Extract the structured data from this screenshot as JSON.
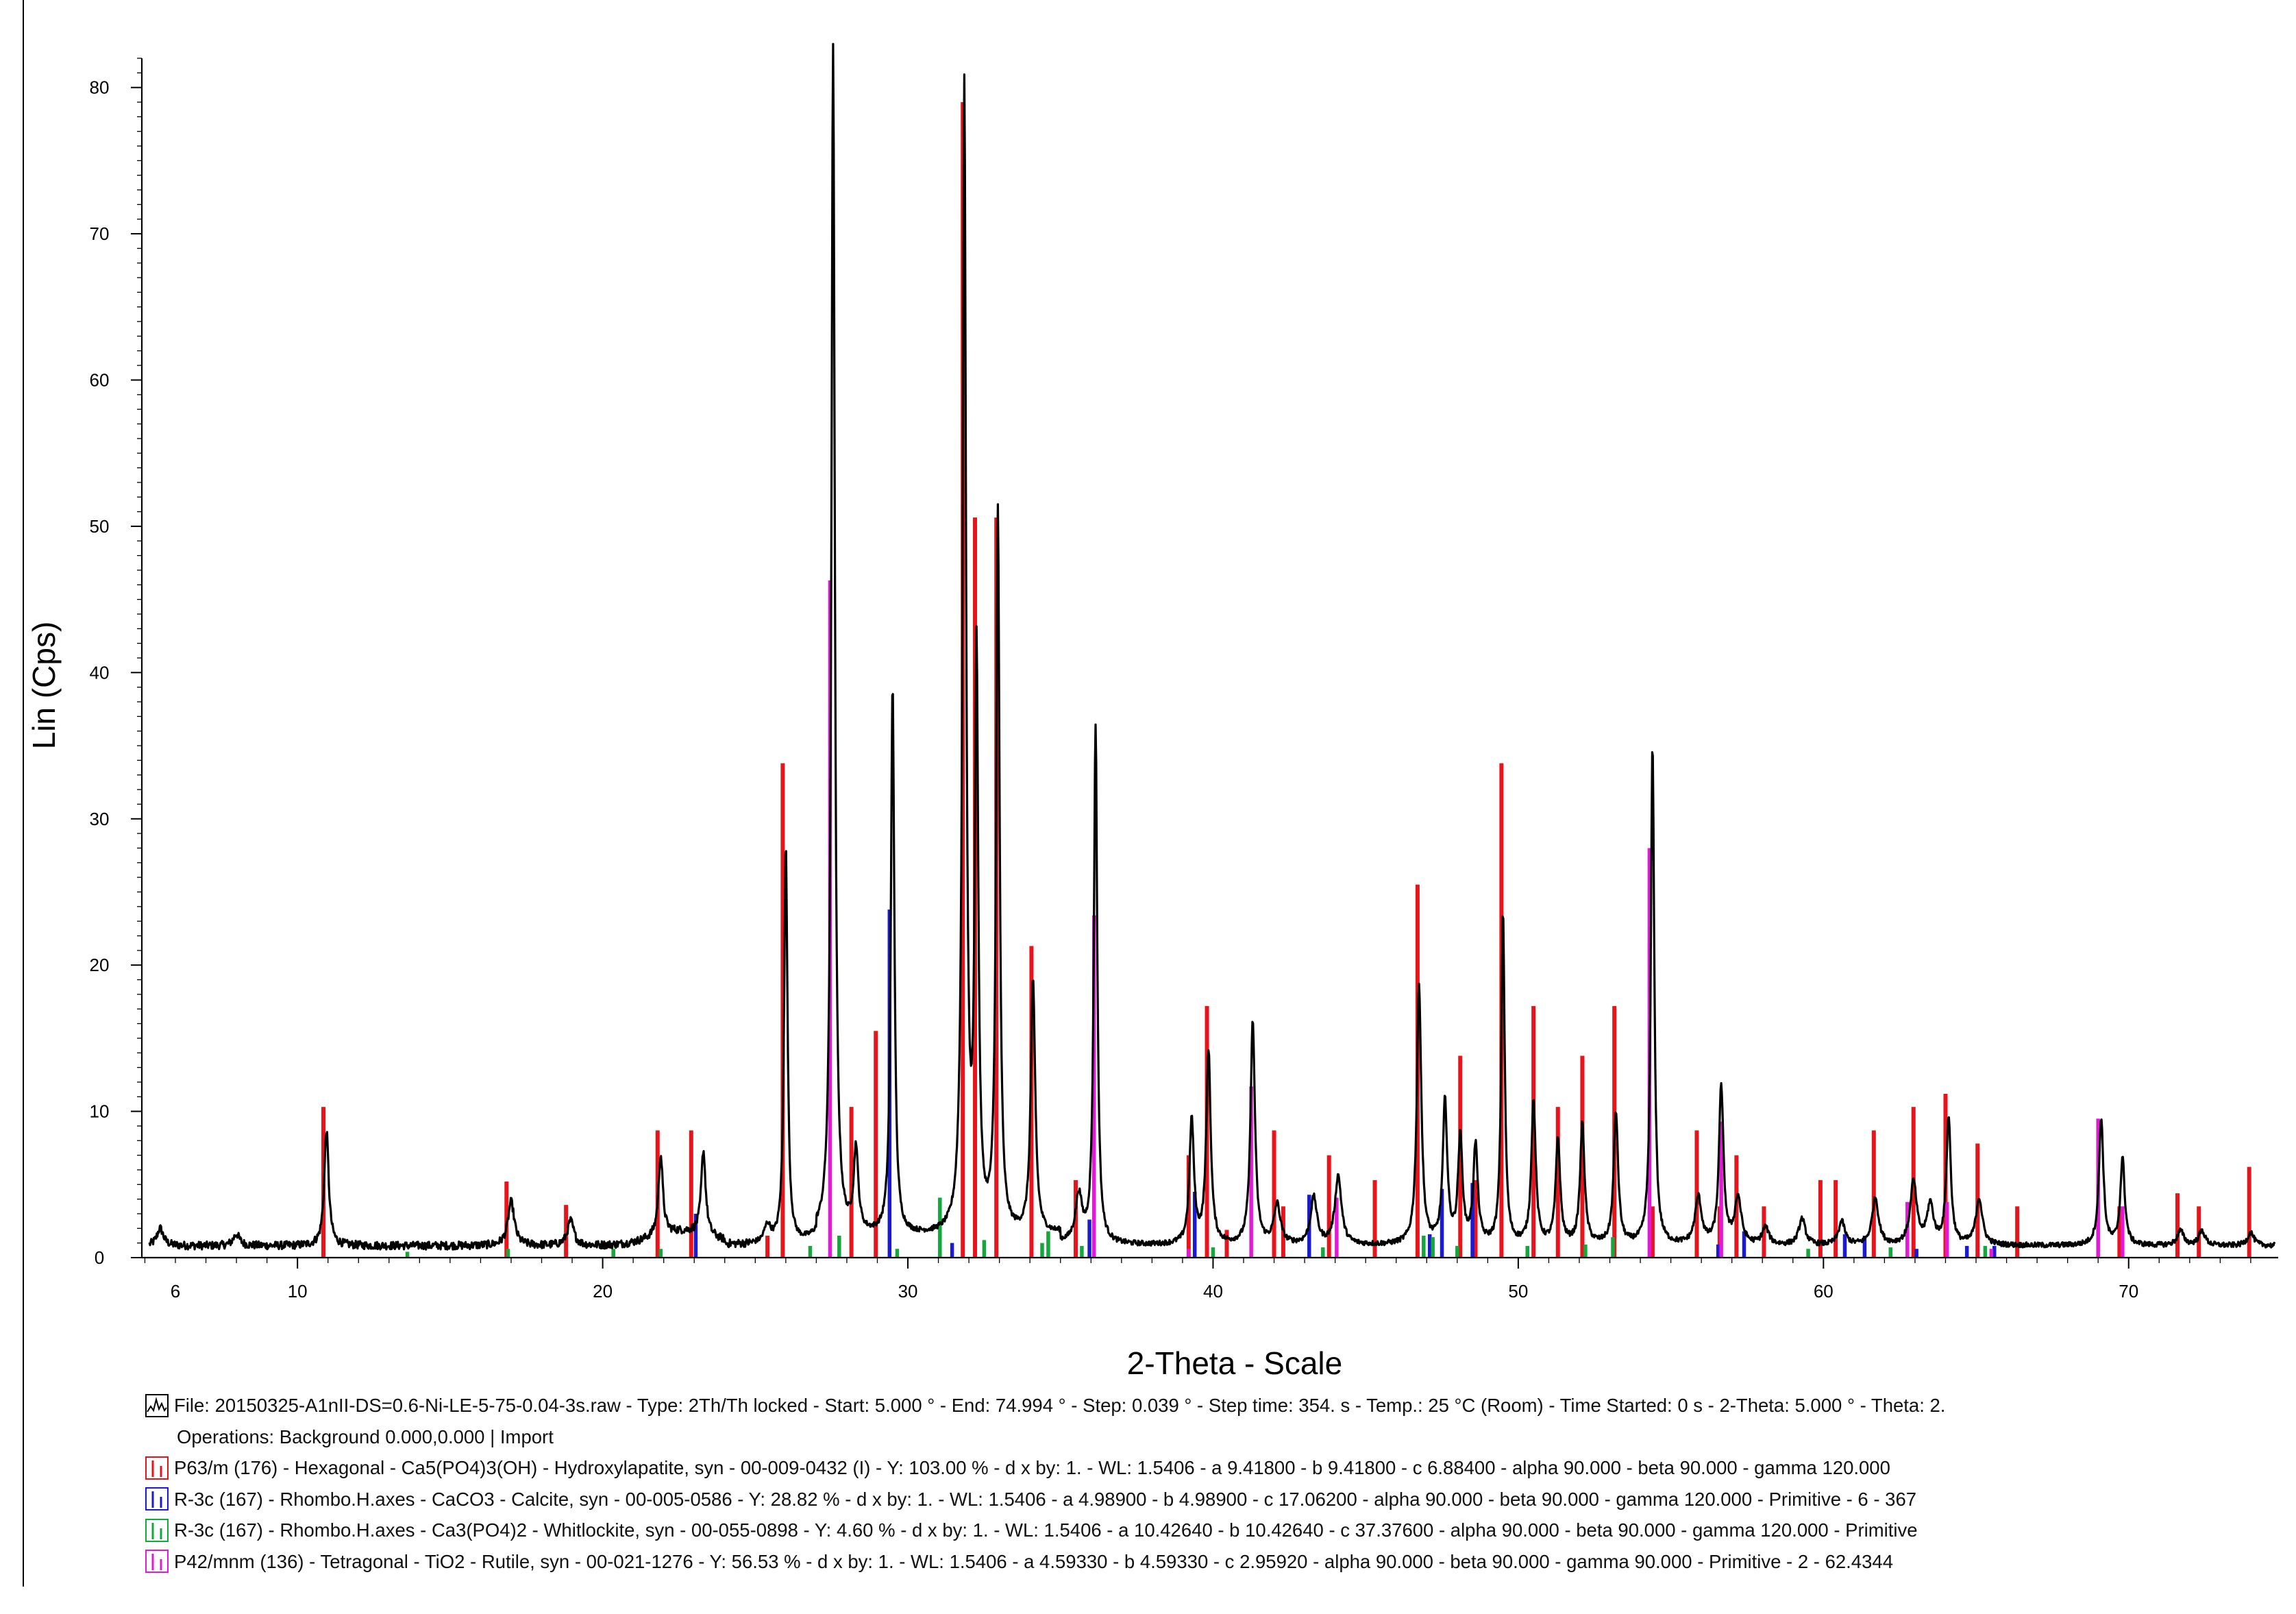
{
  "chart_data": {
    "type": "line",
    "title": "",
    "xlabel": "2-Theta - Scale",
    "ylabel": "Lin (Cps)",
    "xlim": [
      4.9,
      74.9
    ],
    "ylim": [
      0,
      82
    ],
    "grid": false,
    "x_ticks": [
      6,
      10,
      20,
      30,
      40,
      50,
      60,
      70
    ],
    "y_ticks": [
      0,
      10,
      20,
      30,
      40,
      50,
      60,
      70,
      80
    ],
    "measured_pattern": {
      "name": "File: 20150325-A1nII-DS=0.6-Ni-LE-5-75-0.04-3s.raw",
      "color": "#000000",
      "background_level": 0.8,
      "peaks": [
        {
          "x": 5.5,
          "y": 2.0
        },
        {
          "x": 8.0,
          "y": 1.6
        },
        {
          "x": 10.95,
          "y": 8.7
        },
        {
          "x": 17.0,
          "y": 3.8
        },
        {
          "x": 18.95,
          "y": 2.5
        },
        {
          "x": 21.9,
          "y": 6.3
        },
        {
          "x": 23.3,
          "y": 6.6
        },
        {
          "x": 25.4,
          "y": 2.0
        },
        {
          "x": 26.0,
          "y": 28.0
        },
        {
          "x": 27.55,
          "y": 82.0
        },
        {
          "x": 28.3,
          "y": 6.5
        },
        {
          "x": 29.5,
          "y": 38.5
        },
        {
          "x": 31.85,
          "y": 79.0
        },
        {
          "x": 32.25,
          "y": 40.0
        },
        {
          "x": 32.95,
          "y": 50.0
        },
        {
          "x": 34.1,
          "y": 18.0
        },
        {
          "x": 35.6,
          "y": 4.0
        },
        {
          "x": 36.15,
          "y": 36.3
        },
        {
          "x": 39.3,
          "y": 9.3
        },
        {
          "x": 39.85,
          "y": 14.0
        },
        {
          "x": 41.3,
          "y": 16.0
        },
        {
          "x": 42.1,
          "y": 3.5
        },
        {
          "x": 43.3,
          "y": 4.0
        },
        {
          "x": 44.1,
          "y": 5.5
        },
        {
          "x": 46.75,
          "y": 18.5
        },
        {
          "x": 47.6,
          "y": 10.5
        },
        {
          "x": 48.1,
          "y": 8.0
        },
        {
          "x": 48.6,
          "y": 7.5
        },
        {
          "x": 49.5,
          "y": 23.5
        },
        {
          "x": 50.5,
          "y": 10.5
        },
        {
          "x": 51.3,
          "y": 8.0
        },
        {
          "x": 52.1,
          "y": 9.0
        },
        {
          "x": 53.2,
          "y": 9.8
        },
        {
          "x": 54.4,
          "y": 35.0
        },
        {
          "x": 55.9,
          "y": 4.0
        },
        {
          "x": 56.65,
          "y": 11.6
        },
        {
          "x": 57.2,
          "y": 4.0
        },
        {
          "x": 58.1,
          "y": 2.0
        },
        {
          "x": 59.3,
          "y": 2.6
        },
        {
          "x": 60.6,
          "y": 2.4
        },
        {
          "x": 61.7,
          "y": 4.0
        },
        {
          "x": 62.95,
          "y": 5.1
        },
        {
          "x": 63.5,
          "y": 3.5
        },
        {
          "x": 64.1,
          "y": 9.5
        },
        {
          "x": 65.1,
          "y": 4.0
        },
        {
          "x": 69.1,
          "y": 9.5
        },
        {
          "x": 69.8,
          "y": 6.7
        },
        {
          "x": 71.7,
          "y": 1.8
        },
        {
          "x": 72.4,
          "y": 1.8
        },
        {
          "x": 74.0,
          "y": 1.7
        }
      ]
    },
    "reference_patterns": [
      {
        "name": "Hydroxylapatite",
        "color": "#e8141b",
        "sticks": [
          {
            "x": 10.85,
            "y": 10.3
          },
          {
            "x": 16.85,
            "y": 5.2
          },
          {
            "x": 18.8,
            "y": 3.6
          },
          {
            "x": 21.8,
            "y": 8.7
          },
          {
            "x": 22.9,
            "y": 8.7
          },
          {
            "x": 25.4,
            "y": 1.5
          },
          {
            "x": 25.9,
            "y": 33.8
          },
          {
            "x": 28.15,
            "y": 10.3
          },
          {
            "x": 28.95,
            "y": 15.5
          },
          {
            "x": 31.8,
            "y": 79.0
          },
          {
            "x": 32.2,
            "y": 50.6
          },
          {
            "x": 32.9,
            "y": 50.6
          },
          {
            "x": 34.05,
            "y": 21.3
          },
          {
            "x": 35.5,
            "y": 5.3
          },
          {
            "x": 39.2,
            "y": 7.0
          },
          {
            "x": 39.8,
            "y": 17.2
          },
          {
            "x": 40.45,
            "y": 1.9
          },
          {
            "x": 42.0,
            "y": 8.7
          },
          {
            "x": 42.3,
            "y": 3.5
          },
          {
            "x": 43.8,
            "y": 7.0
          },
          {
            "x": 45.3,
            "y": 5.3
          },
          {
            "x": 46.7,
            "y": 25.5
          },
          {
            "x": 48.1,
            "y": 13.8
          },
          {
            "x": 48.6,
            "y": 5.3
          },
          {
            "x": 49.45,
            "y": 33.8
          },
          {
            "x": 50.5,
            "y": 17.2
          },
          {
            "x": 51.3,
            "y": 10.3
          },
          {
            "x": 52.1,
            "y": 13.8
          },
          {
            "x": 53.15,
            "y": 17.2
          },
          {
            "x": 54.4,
            "y": 3.5
          },
          {
            "x": 55.85,
            "y": 8.7
          },
          {
            "x": 56.6,
            "y": 3.5
          },
          {
            "x": 57.15,
            "y": 7.0
          },
          {
            "x": 58.05,
            "y": 3.5
          },
          {
            "x": 59.9,
            "y": 5.3
          },
          {
            "x": 60.4,
            "y": 5.3
          },
          {
            "x": 61.65,
            "y": 8.7
          },
          {
            "x": 62.95,
            "y": 10.3
          },
          {
            "x": 64.0,
            "y": 11.2
          },
          {
            "x": 65.05,
            "y": 7.8
          },
          {
            "x": 66.35,
            "y": 3.5
          },
          {
            "x": 69.7,
            "y": 3.5
          },
          {
            "x": 71.6,
            "y": 4.4
          },
          {
            "x": 72.3,
            "y": 3.5
          },
          {
            "x": 73.95,
            "y": 6.2
          }
        ]
      },
      {
        "name": "Calcite",
        "color": "#1a1ad2",
        "sticks": [
          {
            "x": 23.05,
            "y": 3.0
          },
          {
            "x": 29.4,
            "y": 23.8
          },
          {
            "x": 31.45,
            "y": 1.0
          },
          {
            "x": 35.95,
            "y": 2.6
          },
          {
            "x": 39.4,
            "y": 4.5
          },
          {
            "x": 43.15,
            "y": 4.3
          },
          {
            "x": 47.1,
            "y": 1.6
          },
          {
            "x": 47.5,
            "y": 4.7
          },
          {
            "x": 48.5,
            "y": 5.1
          },
          {
            "x": 56.55,
            "y": 0.9
          },
          {
            "x": 57.4,
            "y": 1.8
          },
          {
            "x": 60.7,
            "y": 1.6
          },
          {
            "x": 61.35,
            "y": 1.5
          },
          {
            "x": 63.05,
            "y": 0.6
          },
          {
            "x": 64.7,
            "y": 0.8
          },
          {
            "x": 65.6,
            "y": 0.8
          }
        ]
      },
      {
        "name": "Whitlockite",
        "color": "#14a83c",
        "sticks": [
          {
            "x": 13.6,
            "y": 0.4
          },
          {
            "x": 16.9,
            "y": 0.6
          },
          {
            "x": 20.35,
            "y": 0.6
          },
          {
            "x": 21.9,
            "y": 0.6
          },
          {
            "x": 26.8,
            "y": 0.8
          },
          {
            "x": 27.75,
            "y": 1.5
          },
          {
            "x": 29.65,
            "y": 0.6
          },
          {
            "x": 31.05,
            "y": 4.1
          },
          {
            "x": 32.5,
            "y": 1.2
          },
          {
            "x": 34.4,
            "y": 1.0
          },
          {
            "x": 34.6,
            "y": 1.8
          },
          {
            "x": 35.7,
            "y": 0.8
          },
          {
            "x": 40.0,
            "y": 0.7
          },
          {
            "x": 43.6,
            "y": 0.7
          },
          {
            "x": 46.9,
            "y": 1.5
          },
          {
            "x": 47.2,
            "y": 1.4
          },
          {
            "x": 48.0,
            "y": 0.8
          },
          {
            "x": 50.3,
            "y": 0.8
          },
          {
            "x": 52.2,
            "y": 0.9
          },
          {
            "x": 53.1,
            "y": 1.4
          },
          {
            "x": 59.5,
            "y": 0.6
          },
          {
            "x": 62.2,
            "y": 0.7
          },
          {
            "x": 65.3,
            "y": 0.8
          }
        ]
      },
      {
        "name": "Rutile",
        "color": "#e21ad6",
        "sticks": [
          {
            "x": 27.45,
            "y": 46.3
          },
          {
            "x": 36.1,
            "y": 23.4
          },
          {
            "x": 39.2,
            "y": 0.6
          },
          {
            "x": 41.25,
            "y": 11.7
          },
          {
            "x": 44.05,
            "y": 4.1
          },
          {
            "x": 54.3,
            "y": 28.0
          },
          {
            "x": 56.65,
            "y": 9.3
          },
          {
            "x": 62.75,
            "y": 3.8
          },
          {
            "x": 64.05,
            "y": 3.8
          },
          {
            "x": 65.5,
            "y": 0.6
          },
          {
            "x": 69.0,
            "y": 9.5
          },
          {
            "x": 69.8,
            "y": 3.5
          }
        ]
      }
    ]
  },
  "legend": {
    "file_line": "File: 20150325-A1nII-DS=0.6-Ni-LE-5-75-0.04-3s.raw - Type: 2Th/Th locked - Start: 5.000 ° - End: 74.994 ° - Step: 0.039 ° - Step time: 354. s - Temp.: 25 °C (Room) - Time Started: 0 s - 2-Theta: 5.000 ° - Theta: 2.",
    "operations_line": "Operations: Background 0.000,0.000 | Import",
    "entries": [
      {
        "text": "P63/m (176) - Hexagonal - Ca5(PO4)3(OH) - Hydroxylapatite, syn - 00-009-0432 (I) - Y: 103.00 % - d x by: 1. - WL: 1.5406 - a 9.41800 - b 9.41800 - c 6.88400 - alpha 90.000 - beta 90.000 - gamma 120.000",
        "color": "#e8141b",
        "icon": "stick-pattern-icon"
      },
      {
        "text": "R-3c (167) - Rhombo.H.axes - CaCO3 - Calcite, syn - 00-005-0586 - Y: 28.82 % - d x by: 1. - WL: 1.5406 - a 4.98900 - b 4.98900 - c 17.06200 - alpha 90.000 - beta 90.000 - gamma 120.000 - Primitive - 6 - 367",
        "color": "#1a1ad2",
        "icon": "stick-pattern-icon"
      },
      {
        "text": "R-3c (167) - Rhombo.H.axes - Ca3(PO4)2 - Whitlockite, syn - 00-055-0898 - Y: 4.60 % - d x by: 1. - WL: 1.5406 - a 10.42640 - b 10.42640 - c 37.37600 - alpha 90.000 - beta 90.000 - gamma 120.000 - Primitive",
        "color": "#14a83c",
        "icon": "stick-pattern-icon"
      },
      {
        "text": "P42/mnm (136) - Tetragonal - TiO2 - Rutile, syn - 00-021-1276 - Y: 56.53 % - d x by: 1. - WL: 1.5406 - a 4.59330 - b 4.59330 - c 2.95920 - alpha 90.000 - beta 90.000 - gamma 90.000 - Primitive - 2 - 62.4344",
        "color": "#e21ad6",
        "icon": "stick-pattern-icon"
      }
    ]
  }
}
